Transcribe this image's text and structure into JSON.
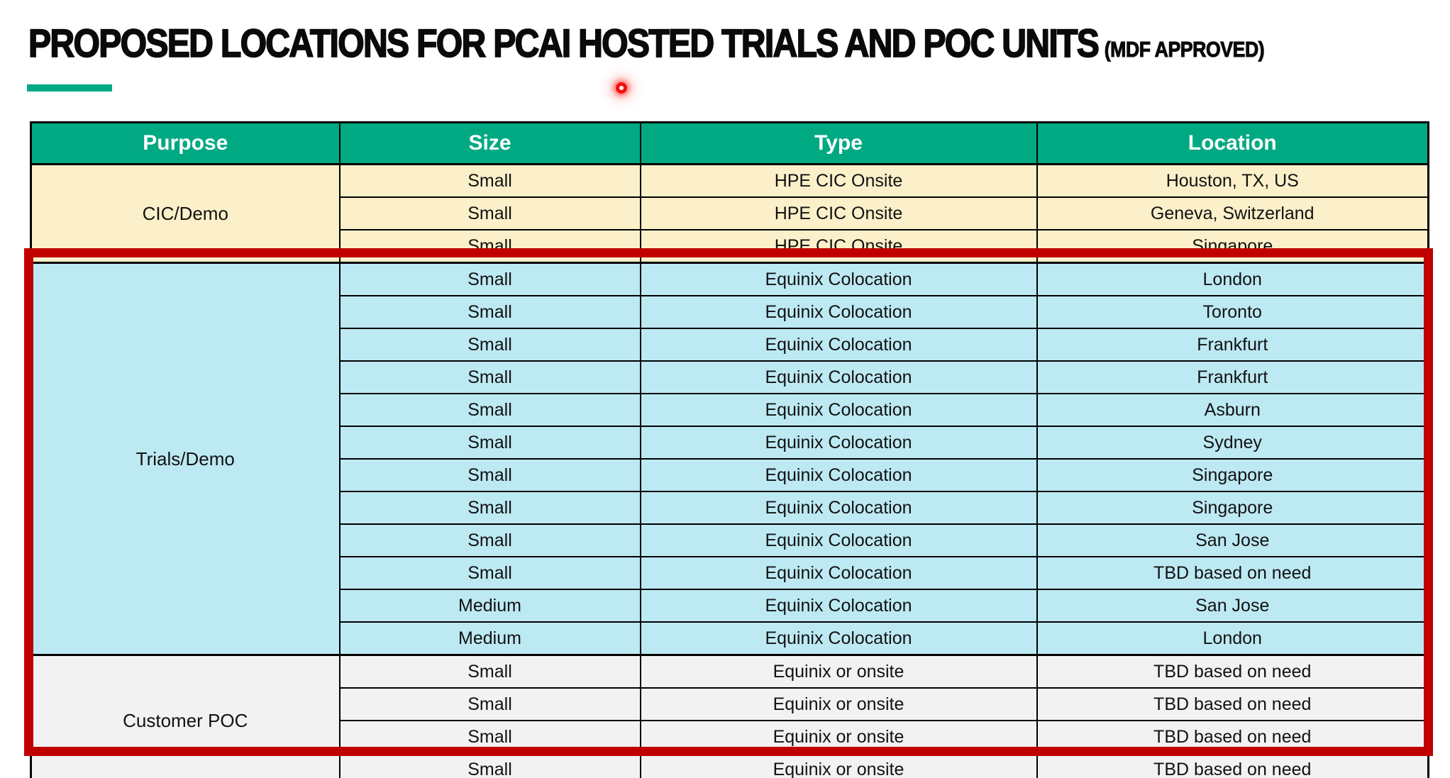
{
  "title": {
    "main": "PROPOSED LOCATIONS FOR PCAI HOSTED TRIALS AND POC UNITS",
    "suffix": "(MDF APPROVED)"
  },
  "colors": {
    "header_bg": "#00A982",
    "accent_bar": "#00A982",
    "cic_section_bg": "#FBF0C9",
    "trials_section_bg": "#BDE9F3",
    "poc_section_bg": "#F2F2F2",
    "highlight_border": "#C00000",
    "laser_dot": "#EE1208",
    "header_text": "#FFFFFF",
    "body_text": "#121212"
  },
  "table": {
    "columns": [
      "Purpose",
      "Size",
      "Type",
      "Location"
    ],
    "sections": [
      {
        "purpose": "CIC/Demo",
        "bg": "#FBF0C9",
        "rows": [
          {
            "size": "Small",
            "type": "HPE CIC Onsite",
            "location": "Houston, TX, US"
          },
          {
            "size": "Small",
            "type": "HPE CIC Onsite",
            "location": "Geneva, Switzerland"
          },
          {
            "size": "Small",
            "type": "HPE CIC Onsite",
            "location": "Singapore"
          }
        ]
      },
      {
        "purpose": "Trials/Demo",
        "bg": "#BDE9F3",
        "rows": [
          {
            "size": "Small",
            "type": "Equinix Colocation",
            "location": "London"
          },
          {
            "size": "Small",
            "type": "Equinix Colocation",
            "location": "Toronto"
          },
          {
            "size": "Small",
            "type": "Equinix Colocation",
            "location": "Frankfurt"
          },
          {
            "size": "Small",
            "type": "Equinix Colocation",
            "location": "Frankfurt"
          },
          {
            "size": "Small",
            "type": "Equinix Colocation",
            "location": "Asburn"
          },
          {
            "size": "Small",
            "type": "Equinix Colocation",
            "location": "Sydney"
          },
          {
            "size": "Small",
            "type": "Equinix Colocation",
            "location": "Singapore"
          },
          {
            "size": "Small",
            "type": "Equinix Colocation",
            "location": "Singapore"
          },
          {
            "size": "Small",
            "type": "Equinix Colocation",
            "location": "San Jose"
          },
          {
            "size": "Small",
            "type": "Equinix Colocation",
            "location": "TBD based on need"
          },
          {
            "size": "Medium",
            "type": "Equinix Colocation",
            "location": "San Jose"
          },
          {
            "size": "Medium",
            "type": "Equinix Colocation",
            "location": "London"
          }
        ]
      },
      {
        "purpose": "Customer POC",
        "bg": "#F2F2F2",
        "rows": [
          {
            "size": "Small",
            "type": "Equinix or onsite",
            "location": "TBD based on need"
          },
          {
            "size": "Small",
            "type": "Equinix or onsite",
            "location": "TBD based on need"
          },
          {
            "size": "Small",
            "type": "Equinix or onsite",
            "location": "TBD based on need"
          },
          {
            "size": "Small",
            "type": "Equinix or onsite",
            "location": "TBD based on need"
          }
        ]
      }
    ]
  }
}
